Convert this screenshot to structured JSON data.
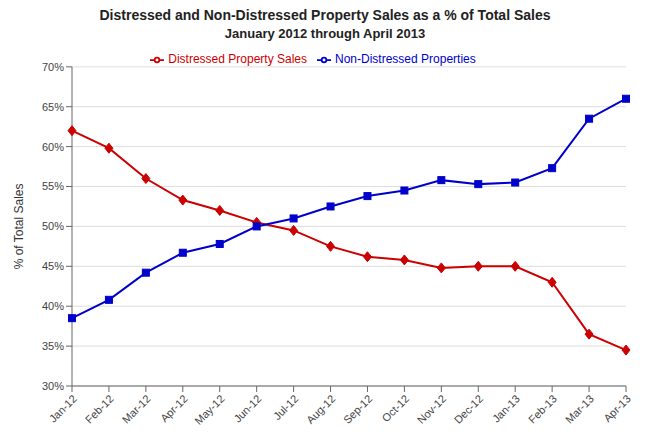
{
  "chart_data": {
    "type": "line",
    "title": "Distressed and Non-Distressed Property Sales as a % of Total Sales",
    "subtitle": "January 2012 through April 2013",
    "ylabel": "% of Total Sales",
    "categories": [
      "Jan-12",
      "Feb-12",
      "Mar-12",
      "Apr-12",
      "May-12",
      "Jun-12",
      "Jul-12",
      "Aug-12",
      "Sep-12",
      "Oct-12",
      "Nov-12",
      "Dec-12",
      "Jan-13",
      "Feb-13",
      "Mar-13",
      "Apr-13"
    ],
    "series": [
      {
        "name": "Distressed Property Sales",
        "color": "#cc0000",
        "marker": "diamond",
        "values": [
          62.0,
          59.8,
          56.0,
          53.3,
          52.0,
          50.5,
          49.5,
          47.5,
          46.2,
          45.8,
          44.8,
          45.0,
          45.0,
          43.0,
          36.5,
          34.5
        ]
      },
      {
        "name": "Non-Distressed Properties",
        "color": "#0000cc",
        "marker": "square",
        "values": [
          38.5,
          40.8,
          44.2,
          46.7,
          47.8,
          50.0,
          51.0,
          52.5,
          53.8,
          54.5,
          55.8,
          55.3,
          55.5,
          57.3,
          63.5,
          66.0
        ]
      }
    ],
    "ylim": [
      30,
      70
    ],
    "yticks": [
      {
        "value": 30,
        "label": "30%"
      },
      {
        "value": 35,
        "label": "35%"
      },
      {
        "value": 40,
        "label": "40%"
      },
      {
        "value": 45,
        "label": "45%"
      },
      {
        "value": 50,
        "label": "50%"
      },
      {
        "value": 55,
        "label": "55%"
      },
      {
        "value": 60,
        "label": "60%"
      },
      {
        "value": 65,
        "label": "65%"
      },
      {
        "value": 70,
        "label": "70%"
      }
    ],
    "grid": true,
    "legend": "top"
  }
}
